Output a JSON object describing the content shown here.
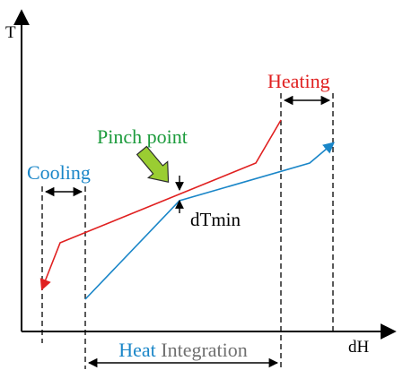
{
  "axes": {
    "y_label": "T",
    "x_label": "dH"
  },
  "labels": {
    "heating": "Heating",
    "cooling": "Cooling",
    "pinch_point": "Pinch point",
    "dtmin": "dTmin",
    "heat_word": "Heat",
    "integration_word": "Integration"
  },
  "colors": {
    "hot_curve": "#e02020",
    "cold_curve": "#1a86c8",
    "pinch_label": "#1c9b3c",
    "pinch_arrow": "#9acd32",
    "integration_text": "#707070",
    "axes": "#000000"
  },
  "icons": {
    "pinch_arrow": "green-block-arrow"
  }
}
